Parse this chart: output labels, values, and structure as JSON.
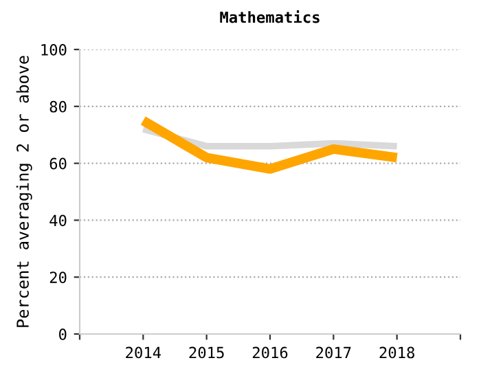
{
  "chart_data": {
    "type": "line",
    "title": "Mathematics",
    "ylabel": "Percent averaging 2 or above",
    "categories": [
      "2014",
      "2015",
      "2016",
      "2017",
      "2018"
    ],
    "series": [
      {
        "color": "#d9d9d9",
        "values": [
          72,
          66,
          66,
          67,
          66
        ]
      },
      {
        "color": "#ffa500",
        "values": [
          75,
          62,
          58,
          65,
          62
        ]
      }
    ],
    "ylim": [
      0,
      100
    ],
    "yticks": [
      0,
      20,
      40,
      60,
      80,
      100
    ],
    "grid": "y",
    "marker": "none",
    "line_style": "solid"
  }
}
